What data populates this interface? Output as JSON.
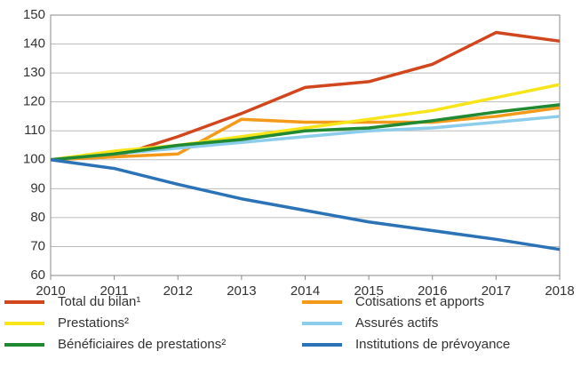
{
  "chart_data": {
    "type": "line",
    "x": [
      2010,
      2011,
      2012,
      2013,
      2014,
      2015,
      2016,
      2017,
      2018
    ],
    "xlim": [
      2010,
      2018
    ],
    "xticks": [
      2010,
      2011,
      2012,
      2013,
      2014,
      2015,
      2016,
      2017,
      2018
    ],
    "ylim": [
      60,
      150
    ],
    "yticks": [
      60,
      70,
      80,
      90,
      100,
      110,
      120,
      130,
      140,
      150
    ],
    "grid": true,
    "series": [
      {
        "name": "Total du bilan¹",
        "color": "#d2461e",
        "values": [
          100,
          101,
          108,
          116,
          125,
          127,
          133,
          144,
          141
        ]
      },
      {
        "name": "Cotisations et apports",
        "color": "#f39a1b",
        "values": [
          100,
          101,
          102,
          114,
          113,
          113,
          113,
          115,
          118
        ]
      },
      {
        "name": "Prestations²",
        "color": "#f7e51a",
        "values": [
          100,
          103,
          105,
          108,
          111,
          114,
          117,
          121.5,
          126
        ]
      },
      {
        "name": "Assurés actifs",
        "color": "#8dcdec",
        "values": [
          100,
          102,
          104,
          106,
          108,
          110,
          111,
          113,
          115
        ]
      },
      {
        "name": "Bénéficiaires de prestations²",
        "color": "#1f8a32",
        "values": [
          100,
          102,
          105,
          107,
          110,
          111,
          113.5,
          116.5,
          119
        ]
      },
      {
        "name": "Institutions de prévoyance",
        "color": "#2b73b6",
        "values": [
          100,
          97,
          91.5,
          86.5,
          82.5,
          78.5,
          75.5,
          72.5,
          69
        ]
      }
    ]
  }
}
